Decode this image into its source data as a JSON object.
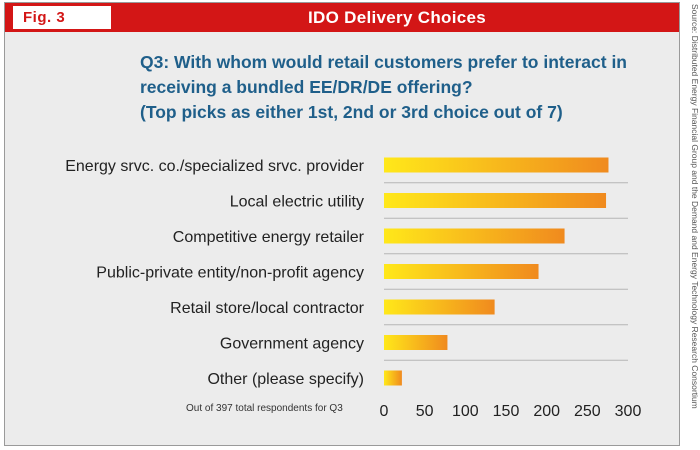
{
  "header": {
    "figure_label": "Fig. 3",
    "title": "IDO Delivery Choices"
  },
  "question": {
    "line1": "Q3: With whom would retail customers prefer to interact in",
    "line2": "receiving a bundled EE/DR/DE offering?",
    "line3": "(Top picks as either 1st, 2nd or 3rd choice out of 7)"
  },
  "source": "Source: Distributed Energy Financial Group and the Demand and Energy Technology Research Consortium",
  "footnote": "Out of 397 total respondents for Q3",
  "colors": {
    "bar_start": "#ffe81a",
    "bar_end": "#f08a1e",
    "header": "#d31616",
    "question_text": "#1f5f8a"
  },
  "chart_data": {
    "type": "bar",
    "orientation": "horizontal",
    "title": "Q3: With whom would retail customers prefer to interact in receiving a bundled EE/DR/DE offering? (Top picks as either 1st, 2nd or 3rd choice out of 7)",
    "categories": [
      "Energy srvc. co./specialized srvc. provider",
      "Local electric utility",
      "Competitive energy retailer",
      "Public-private entity/non-profit agency",
      "Retail store/local contractor",
      "Government agency",
      "Other (please specify)"
    ],
    "values": [
      276,
      273,
      222,
      190,
      136,
      78,
      22
    ],
    "xlim": [
      0,
      300
    ],
    "xticks": [
      0,
      50,
      100,
      150,
      200,
      250,
      300
    ],
    "xlabel": "",
    "ylabel": "",
    "grid": true
  }
}
